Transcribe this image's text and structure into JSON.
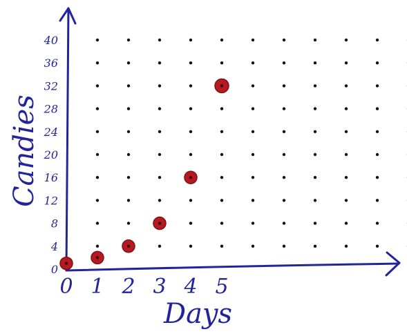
{
  "chart_data": {
    "type": "scatter",
    "xlabel": "Days",
    "ylabel": "Candies",
    "x_ticks": [
      "0",
      "1",
      "2",
      "3",
      "4",
      "5"
    ],
    "y_ticks": [
      "0",
      "4",
      "8",
      "12",
      "16",
      "20",
      "24",
      "28",
      "32",
      "36",
      "40"
    ],
    "xlim": [
      0,
      11
    ],
    "ylim": [
      0,
      40
    ],
    "grid": "dotted",
    "series": [
      {
        "x": [
          0,
          1,
          2,
          3,
          4,
          5
        ],
        "y": [
          1,
          2,
          4,
          8,
          16,
          32
        ]
      }
    ],
    "colors": {
      "axis": "#22249a",
      "point": "#b51a22",
      "grid_dot": "#111111"
    }
  }
}
